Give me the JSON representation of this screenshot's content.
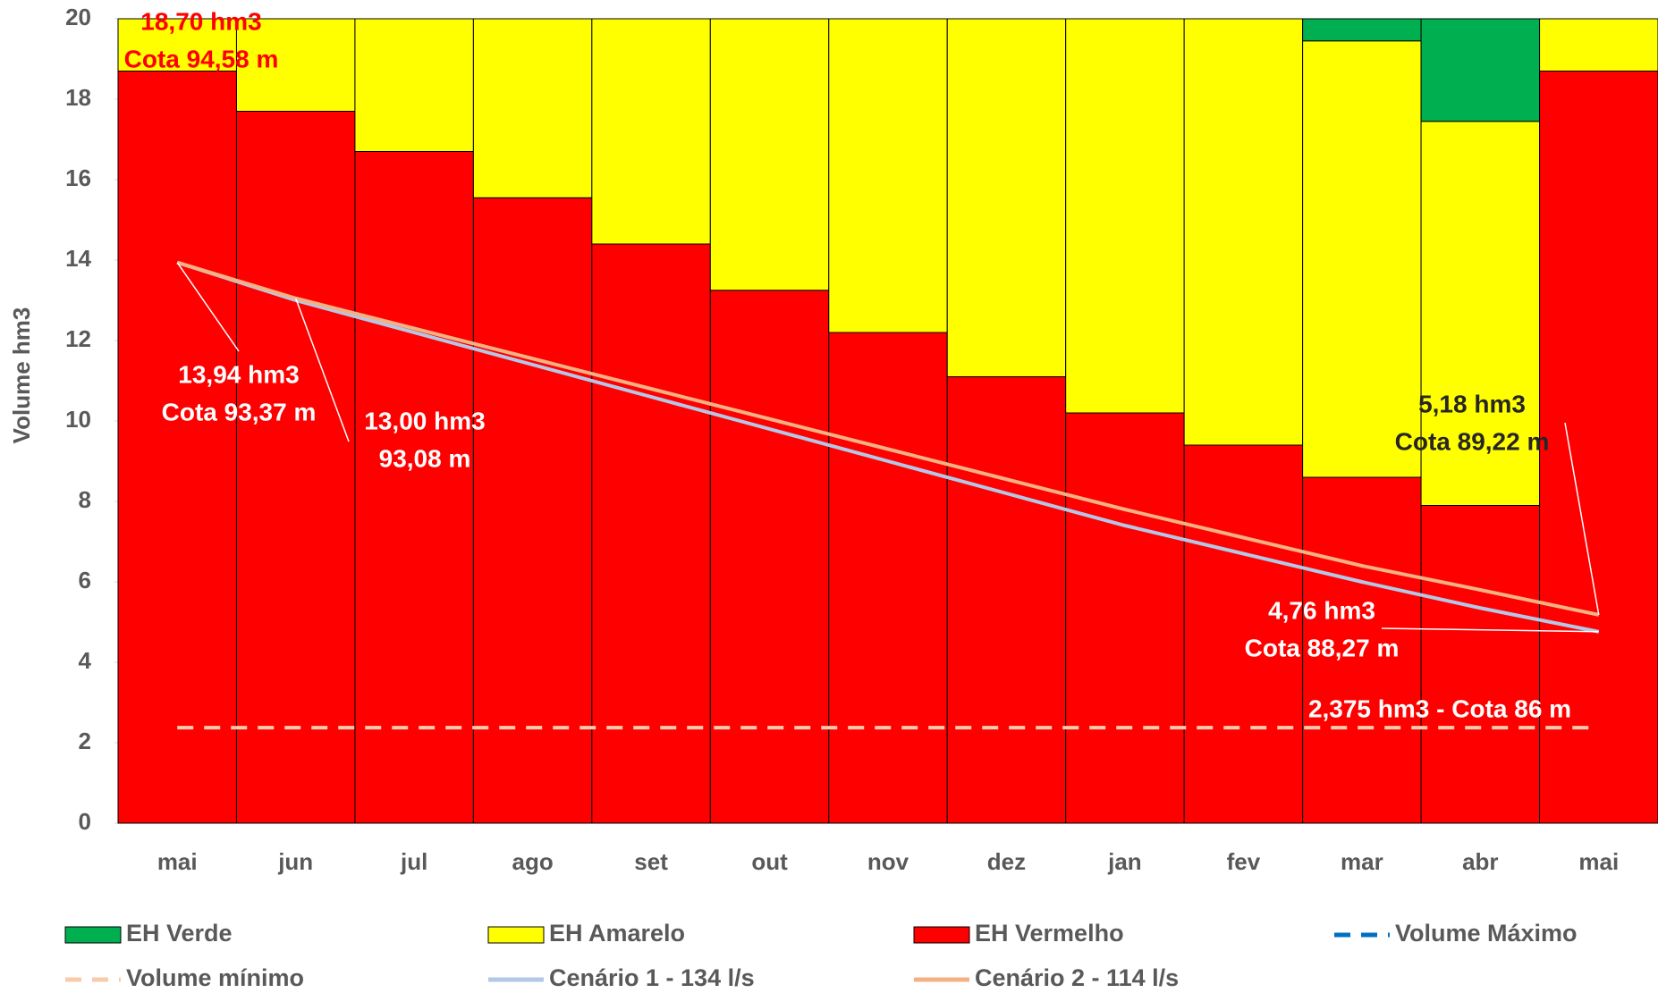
{
  "chart_data": {
    "type": "bar",
    "y_label": "Volume hm3",
    "categories": [
      "mai",
      "jun",
      "jul",
      "ago",
      "set",
      "out",
      "nov",
      "dez",
      "jan",
      "fev",
      "mar",
      "abr",
      "mai"
    ],
    "ylim": [
      0,
      20
    ],
    "yticks": [
      0,
      2,
      4,
      6,
      8,
      10,
      12,
      14,
      16,
      18,
      20
    ],
    "series": [
      {
        "name": "EH Verde",
        "type": "bar",
        "color": "#00b050",
        "values": [
          0,
          0,
          0,
          0,
          0,
          0,
          0,
          0,
          0,
          0,
          0.55,
          2.55,
          0
        ]
      },
      {
        "name": "EH Amarelo",
        "type": "bar",
        "color": "#ffff00",
        "values": [
          1.3,
          2.3,
          3.3,
          4.45,
          5.6,
          6.75,
          7.8,
          8.9,
          9.8,
          10.6,
          10.85,
          9.55,
          1.3
        ]
      },
      {
        "name": "EH Vermelho",
        "type": "bar",
        "color": "#ff0000",
        "values": [
          18.7,
          17.7,
          16.7,
          15.55,
          14.4,
          13.25,
          12.2,
          11.1,
          10.2,
          9.4,
          8.6,
          7.9,
          18.7
        ]
      },
      {
        "name": "Volume Máximo",
        "type": "line",
        "dash": true,
        "color": "#0070c0",
        "values": [
          null,
          null,
          null,
          null,
          null,
          null,
          null,
          null,
          null,
          null,
          null,
          null,
          null
        ]
      },
      {
        "name": "Volume mínimo",
        "type": "line",
        "dash": true,
        "color": "#f8cbad",
        "values": [
          2.375,
          2.375,
          2.375,
          2.375,
          2.375,
          2.375,
          2.375,
          2.375,
          2.375,
          2.375,
          2.375,
          2.375,
          2.375
        ]
      },
      {
        "name": "Cenário 1 - 134 l/s",
        "type": "line",
        "color": "#b4c7e7",
        "values": [
          13.94,
          13.0,
          12.2,
          11.4,
          10.6,
          9.8,
          9.0,
          8.2,
          7.4,
          6.7,
          6.0,
          5.35,
          4.76
        ]
      },
      {
        "name": "Cenário 2 - 114 l/s",
        "type": "line",
        "color": "#f4b183",
        "values": [
          13.94,
          13.05,
          12.3,
          11.55,
          10.8,
          10.05,
          9.3,
          8.55,
          7.8,
          7.1,
          6.4,
          5.8,
          5.18
        ]
      }
    ],
    "annotations": [
      {
        "lines": [
          "18,70 hm3",
          "Cota 94,58 m"
        ],
        "color": "#ff0000"
      },
      {
        "lines": [
          "13,94 hm3",
          "Cota 93,37 m"
        ],
        "color": "#ffffff"
      },
      {
        "lines": [
          "13,00 hm3",
          "93,08 m"
        ],
        "color": "#ffffff"
      },
      {
        "lines": [
          "5,18 hm3",
          "Cota 89,22 m"
        ],
        "color": "#262626"
      },
      {
        "lines": [
          "4,76 hm3",
          "Cota 88,27 m"
        ],
        "color": "#ffffff"
      },
      {
        "lines": [
          "2,375 hm3 - Cota 86 m"
        ],
        "color": "#ffffff"
      }
    ]
  }
}
